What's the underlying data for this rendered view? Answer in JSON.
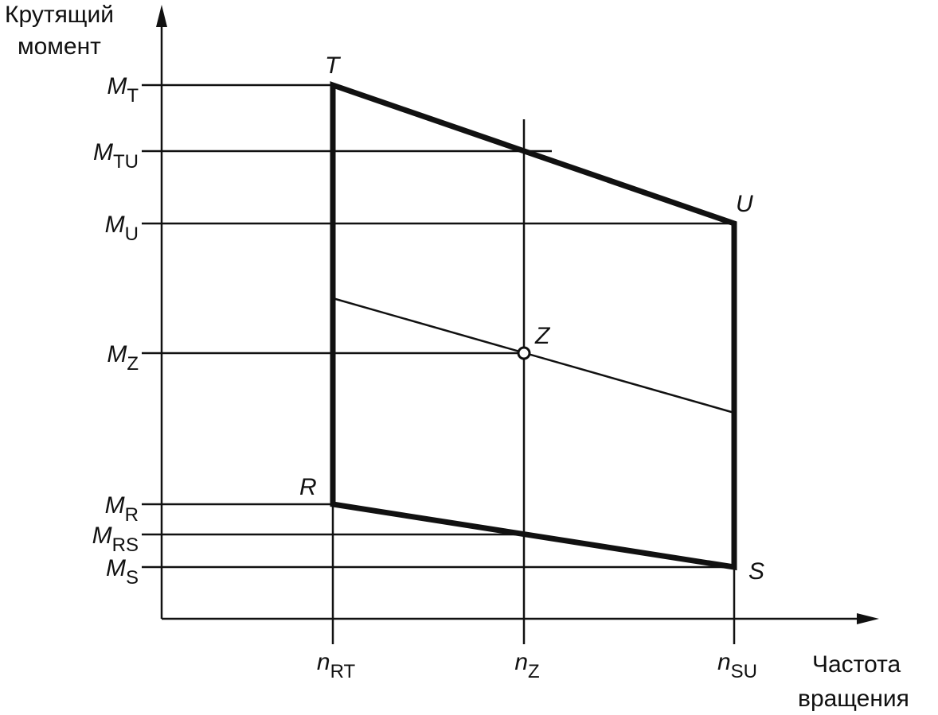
{
  "y_axis_label": [
    "Крутящий",
    "момент"
  ],
  "x_axis_label": [
    "Частота",
    "вращения"
  ],
  "y_labels": [
    {
      "main": "M",
      "sub": "T"
    },
    {
      "main": "M",
      "sub": "TU"
    },
    {
      "main": "M",
      "sub": "U"
    },
    {
      "main": "M",
      "sub": "Z"
    },
    {
      "main": "M",
      "sub": "R"
    },
    {
      "main": "M",
      "sub": "RS"
    },
    {
      "main": "M",
      "sub": "S"
    }
  ],
  "x_labels": [
    {
      "main": "n",
      "sub": "RT"
    },
    {
      "main": "n",
      "sub": "Z"
    },
    {
      "main": "n",
      "sub": "SU"
    }
  ],
  "points": [
    "T",
    "U",
    "Z",
    "R",
    "S"
  ]
}
